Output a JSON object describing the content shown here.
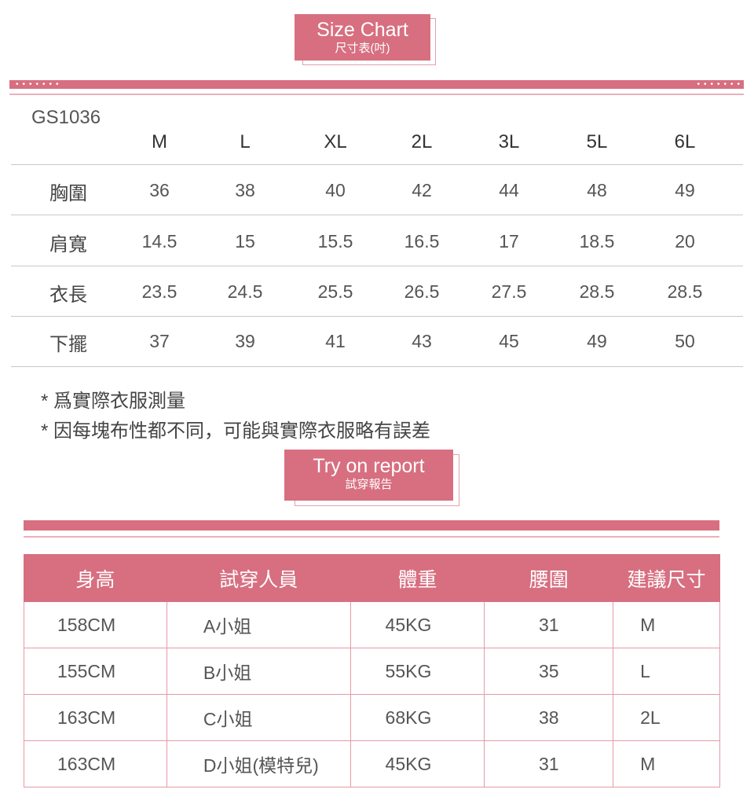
{
  "size_chart": {
    "title": "Size Chart",
    "subtitle": "尺寸表(吋)",
    "model": "GS1036",
    "sizes": [
      "M",
      "L",
      "XL",
      "2L",
      "3L",
      "5L",
      "6L"
    ],
    "rows": [
      {
        "label": "胸圍",
        "values": [
          "36",
          "38",
          "40",
          "42",
          "44",
          "48",
          "49"
        ]
      },
      {
        "label": "肩寬",
        "values": [
          "14.5",
          "15",
          "15.5",
          "16.5",
          "17",
          "18.5",
          "20"
        ]
      },
      {
        "label": "衣長",
        "values": [
          "23.5",
          "24.5",
          "25.5",
          "26.5",
          "27.5",
          "28.5",
          "28.5"
        ]
      },
      {
        "label": "下擺",
        "values": [
          "37",
          "39",
          "41",
          "43",
          "45",
          "49",
          "50"
        ]
      }
    ],
    "notes": [
      "* 爲實際衣服測量",
      "* 因每塊布性都不同，可能與實際衣服略有誤差"
    ]
  },
  "try_on": {
    "title": "Try on report",
    "subtitle": "試穿報告",
    "headers": [
      "身高",
      "試穿人員",
      "體重",
      "腰圍",
      "建議尺寸"
    ],
    "rows": [
      [
        "158CM",
        "A小姐",
        "45KG",
        "31",
        "M"
      ],
      [
        "155CM",
        "B小姐",
        "55KG",
        "35",
        "L"
      ],
      [
        "163CM",
        "C小姐",
        "68KG",
        "38",
        "2L"
      ],
      [
        "163CM",
        "D小姐(模特兒)",
        "45KG",
        "31",
        "M"
      ]
    ]
  },
  "colors": {
    "accent": "#d76f80"
  }
}
